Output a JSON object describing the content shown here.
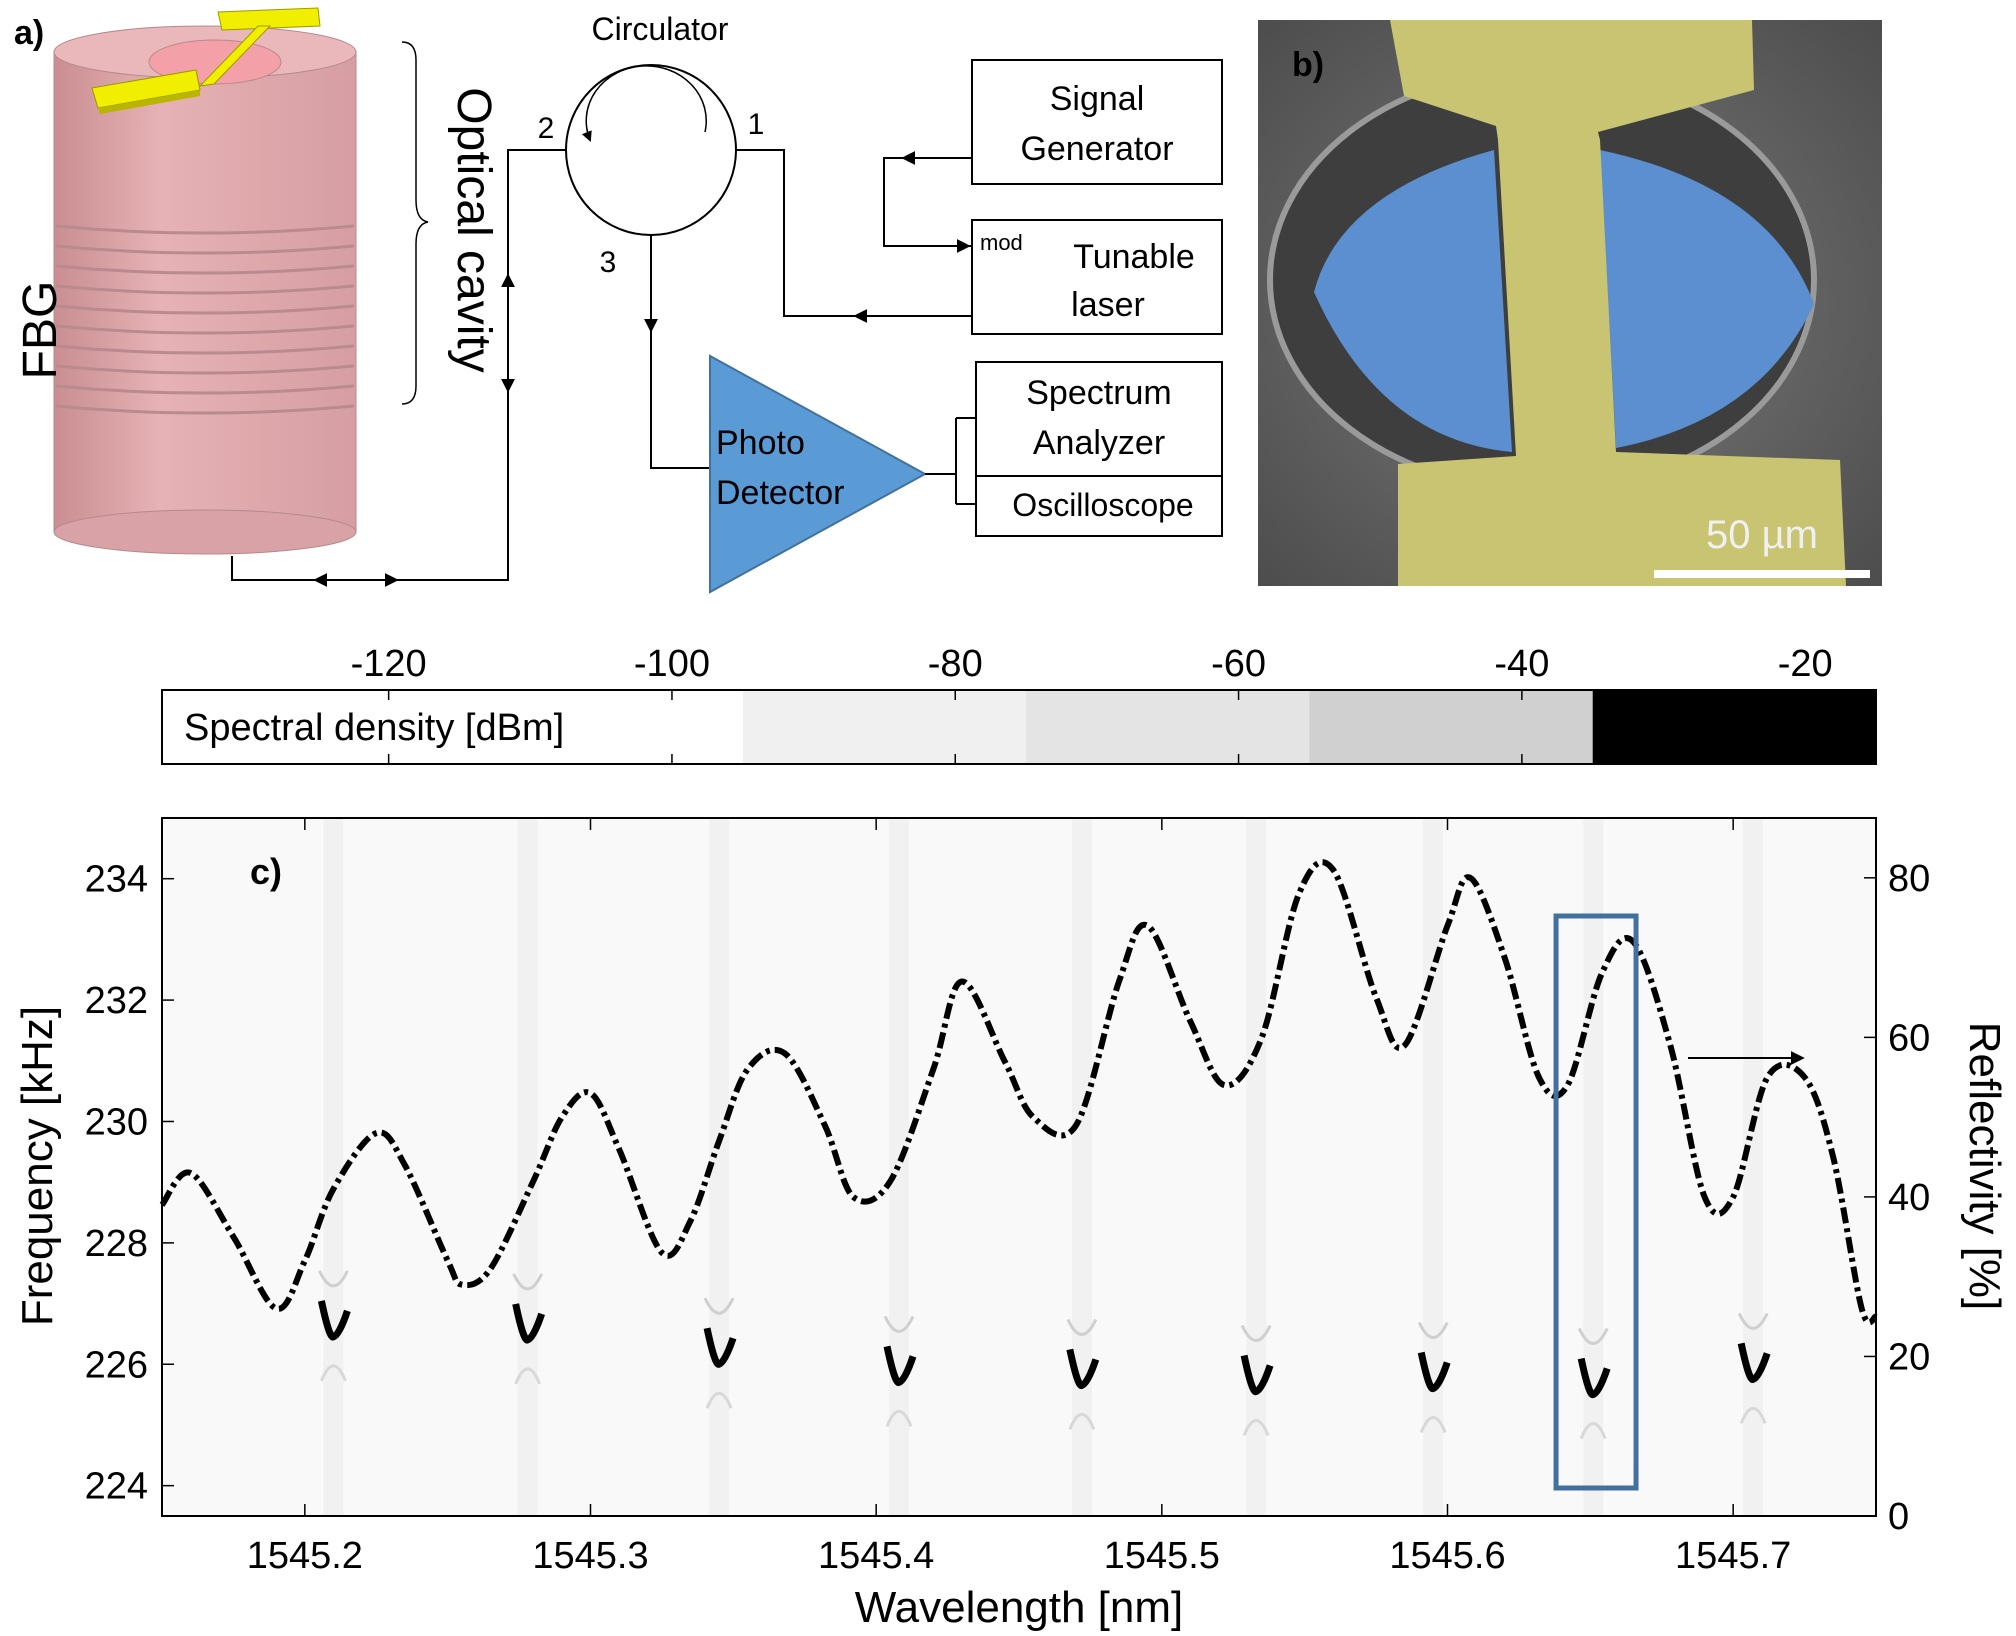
{
  "panel_a": {
    "label": "a)",
    "fbg_label": "FBG",
    "cavity_label": "Optical cavity",
    "circulator": {
      "title": "Circulator",
      "port1": "1",
      "port2": "2",
      "port3": "3"
    },
    "signal_generator": [
      "Signal",
      "Generator"
    ],
    "tunable_laser": {
      "mod": "mod",
      "line1": "Tunable",
      "line2": "laser"
    },
    "photo_detector": [
      "Photo",
      "Detector"
    ],
    "spectrum_analyzer": [
      "Spectrum",
      "Analyzer"
    ],
    "oscilloscope": "Oscilloscope",
    "colors": {
      "fiber": "#e0a9ac",
      "electrode": "#f2ee00",
      "detector": "#5b9bd5"
    }
  },
  "panel_b": {
    "label": "b)",
    "scale_bar": "50 µm",
    "colors": {
      "membrane": "#5b8fd0",
      "electrode": "#c8c472",
      "substrate": "#6b6b6b"
    }
  },
  "colorbar": {
    "label": "Spectral density [dBm]",
    "ticks": [
      "-120",
      "-100",
      "-80",
      "-60",
      "-40",
      "-20"
    ],
    "tick_values": [
      -120,
      -100,
      -80,
      -60,
      -40,
      -20
    ],
    "range": [
      -136,
      -15
    ],
    "bands": [
      {
        "from": -136,
        "to": -95,
        "color": "#ffffff"
      },
      {
        "from": -95,
        "to": -75,
        "color": "#f0f0f0"
      },
      {
        "from": -75,
        "to": -55,
        "color": "#e4e4e4"
      },
      {
        "from": -55,
        "to": -35,
        "color": "#d0d0d0"
      },
      {
        "from": -35,
        "to": -15,
        "color": "#000000"
      }
    ]
  },
  "panel_c": {
    "label": "c)",
    "highlight_color": "#41719c"
  },
  "chart_data": {
    "type": "line",
    "xlabel": "Wavelength [nm]",
    "ylabel": "Frequency [kHz]",
    "y2label": "Reflectivity [%]",
    "xlim": [
      1545.15,
      1545.75
    ],
    "ylim": [
      223.5,
      235
    ],
    "y2lim": [
      0,
      87.5
    ],
    "xticks": [
      "1545.2",
      "1545.3",
      "1545.4",
      "1545.5",
      "1545.6",
      "1545.7"
    ],
    "xtick_values": [
      1545.2,
      1545.3,
      1545.4,
      1545.5,
      1545.6,
      1545.7
    ],
    "yticks": [
      "224",
      "226",
      "228",
      "230",
      "232",
      "234"
    ],
    "ytick_values": [
      224,
      226,
      228,
      230,
      232,
      234
    ],
    "y2ticks": [
      "0",
      "20",
      "40",
      "60",
      "80"
    ],
    "y2tick_values": [
      0,
      20,
      40,
      60,
      80
    ],
    "reflectivity": {
      "x": [
        1545.15,
        1545.16,
        1545.175,
        1545.19,
        1545.2,
        1545.21,
        1545.225,
        1545.235,
        1545.25,
        1545.255,
        1545.265,
        1545.28,
        1545.29,
        1545.3,
        1545.31,
        1545.325,
        1545.335,
        1545.345,
        1545.355,
        1545.368,
        1545.382,
        1545.392,
        1545.405,
        1545.42,
        1545.43,
        1545.445,
        1545.455,
        1545.47,
        1545.485,
        1545.495,
        1545.51,
        1545.522,
        1545.535,
        1545.548,
        1545.56,
        1545.575,
        1545.585,
        1545.6,
        1545.608,
        1545.62,
        1545.632,
        1545.642,
        1545.654,
        1545.665,
        1545.678,
        1545.69,
        1545.7,
        1545.712,
        1545.725,
        1545.735,
        1545.745,
        1545.75
      ],
      "y": [
        39,
        43,
        35,
        26,
        32,
        41,
        48,
        44,
        32,
        29,
        31,
        42,
        50,
        53,
        46,
        33,
        37,
        47,
        56,
        58,
        49,
        40,
        42,
        56,
        67,
        57,
        50,
        49,
        67,
        74,
        62,
        54,
        60,
        78,
        81,
        65,
        59,
        74,
        80,
        70,
        55,
        54,
        68,
        72,
        59,
        40,
        40,
        55,
        55,
        45,
        26,
        25
      ]
    },
    "resonances": {
      "x": [
        1545.21,
        1545.278,
        1545.345,
        1545.408,
        1545.472,
        1545.533,
        1545.595,
        1545.651,
        1545.707
      ],
      "y": [
        226.55,
        226.5,
        226.1,
        225.8,
        225.75,
        225.65,
        225.7,
        225.6,
        225.85
      ]
    },
    "highlight_x": [
      1545.638,
      1545.666
    ]
  }
}
